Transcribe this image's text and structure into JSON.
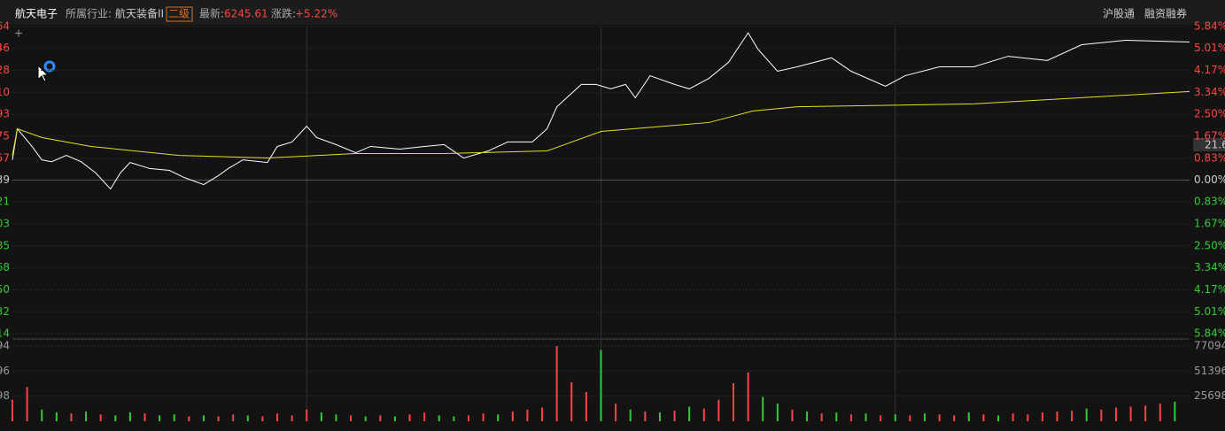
{
  "header": {
    "stock": "航天电子",
    "industry_label": "所属行业:",
    "industry": "航天装备II",
    "level": "二级",
    "latest_label": "最新:",
    "latest": "6245.61",
    "change_label": "涨跌:",
    "change": "+5.22%",
    "buttons": [
      "沪股通",
      "融资融券"
    ],
    "badge": "21.6"
  },
  "price_chart": {
    "type": "line",
    "xlim": [
      0,
      240
    ],
    "xticks": [
      60,
      120,
      180
    ],
    "ylim": [
      -5.84,
      5.84
    ],
    "yticks": [
      {
        "value": 5.84,
        "label": "5.84%"
      },
      {
        "value": 5.01,
        "label": "5.01%"
      },
      {
        "value": 4.17,
        "label": "4.17%"
      },
      {
        "value": 3.34,
        "label": "3.34%"
      },
      {
        "value": 2.5,
        "label": "2.50%"
      },
      {
        "value": 1.67,
        "label": "1.67%"
      },
      {
        "value": 0.83,
        "label": "0.83%"
      },
      {
        "value": 0,
        "label": "0.00%"
      },
      {
        "value": -0.83,
        "label": "0.83%"
      },
      {
        "value": -1.67,
        "label": "1.67%"
      },
      {
        "value": -2.5,
        "label": "2.50%"
      },
      {
        "value": -3.34,
        "label": "3.34%"
      },
      {
        "value": -4.17,
        "label": "4.17%"
      },
      {
        "value": -5.01,
        "label": "5.01%"
      },
      {
        "value": -5.84,
        "label": "5.84%"
      }
    ],
    "left_labels": [
      "64",
      "46",
      "28",
      "10",
      "93",
      "75",
      "57",
      "39",
      "21",
      "03",
      "85",
      "68",
      "50",
      "32",
      "14"
    ],
    "up_color": "#ff4444",
    "flat_color": "#cccccc",
    "down_color": "#33cc33",
    "series": [
      {
        "color": "#ffffff",
        "x": [
          0,
          1,
          4,
          6,
          8,
          11,
          14,
          17,
          20,
          22,
          24,
          28,
          32,
          35,
          39,
          42,
          44,
          47,
          52,
          54,
          57,
          60,
          62,
          66,
          70,
          73,
          79,
          84,
          88,
          92,
          97,
          101,
          106,
          109,
          111,
          116,
          119,
          122,
          125,
          127,
          130,
          135,
          138,
          142,
          146,
          150,
          152,
          156,
          160,
          167,
          171,
          178,
          182,
          189,
          196,
          203,
          211,
          218,
          227,
          240
        ],
        "values": [
          0.77,
          1.95,
          1.28,
          0.77,
          0.7,
          0.94,
          0.7,
          0.27,
          -0.34,
          0.27,
          0.67,
          0.44,
          0.37,
          0.1,
          -0.17,
          0.17,
          0.44,
          0.77,
          0.67,
          1.28,
          1.45,
          2.05,
          1.62,
          1.35,
          1.04,
          1.28,
          1.18,
          1.28,
          1.35,
          0.84,
          1.11,
          1.45,
          1.45,
          1.95,
          2.79,
          3.64,
          3.64,
          3.47,
          3.64,
          3.13,
          3.97,
          3.64,
          3.47,
          3.87,
          4.48,
          5.6,
          4.98,
          4.14,
          4.31,
          4.65,
          4.14,
          3.57,
          3.97,
          4.31,
          4.31,
          4.71,
          4.55,
          5.15,
          5.32,
          5.25
        ]
      },
      {
        "color": "#e8e020",
        "x": [
          0,
          1,
          6,
          16,
          34,
          52,
          70,
          88,
          109,
          120,
          142,
          151,
          160,
          196,
          240
        ],
        "values": [
          0.94,
          1.95,
          1.62,
          1.28,
          0.94,
          0.84,
          1.01,
          1.01,
          1.11,
          1.85,
          2.19,
          2.63,
          2.79,
          2.9,
          3.37
        ]
      }
    ]
  },
  "volume_chart": {
    "type": "bar",
    "ylim": [
      0,
      77094
    ],
    "yticks": [
      25698,
      51396,
      77094
    ],
    "left_labels": [
      "98",
      "96",
      "94"
    ],
    "x": [
      0,
      3,
      6,
      9,
      12,
      15,
      18,
      21,
      24,
      27,
      30,
      33,
      36,
      39,
      42,
      45,
      48,
      51,
      54,
      57,
      60,
      63,
      66,
      69,
      72,
      75,
      78,
      81,
      84,
      87,
      90,
      93,
      96,
      99,
      102,
      105,
      108,
      111,
      114,
      117,
      120,
      123,
      126,
      129,
      132,
      135,
      138,
      141,
      144,
      147,
      150,
      153,
      156,
      159,
      162,
      165,
      168,
      171,
      174,
      177,
      180,
      183,
      186,
      189,
      192,
      195,
      198,
      201,
      204,
      207,
      210,
      213,
      216,
      219,
      222,
      225,
      228,
      231,
      234,
      237
    ],
    "values": [
      22000,
      35000,
      12000,
      9000,
      8000,
      10000,
      7000,
      6000,
      9000,
      8000,
      6000,
      7000,
      5000,
      6000,
      5000,
      7000,
      6000,
      5000,
      8000,
      6000,
      12000,
      9000,
      7000,
      6000,
      5000,
      6000,
      5000,
      7000,
      9000,
      6000,
      5000,
      6000,
      8000,
      7000,
      10000,
      12000,
      14000,
      77000,
      40000,
      30000,
      73000,
      18000,
      12000,
      10000,
      9000,
      11000,
      15000,
      13000,
      22000,
      39000,
      50000,
      25000,
      18000,
      12000,
      10000,
      8000,
      9000,
      7000,
      8000,
      6000,
      7000,
      6000,
      8000,
      7000,
      6000,
      9000,
      7000,
      6000,
      8000,
      7000,
      9000,
      10000,
      11000,
      13000,
      12000,
      14000,
      15000,
      16000,
      18000,
      20000
    ],
    "colors": [
      "#ff4444",
      "#ff4444",
      "#33cc33",
      "#33cc33",
      "#ff4444",
      "#33cc33",
      "#ff4444",
      "#33cc33",
      "#33cc33",
      "#ff4444",
      "#33cc33",
      "#33cc33",
      "#ff4444",
      "#33cc33",
      "#ff4444",
      "#ff4444",
      "#33cc33",
      "#ff4444",
      "#ff4444",
      "#ff4444",
      "#ff4444",
      "#33cc33",
      "#33cc33",
      "#ff4444",
      "#33cc33",
      "#ff4444",
      "#33cc33",
      "#ff4444",
      "#ff4444",
      "#33cc33",
      "#33cc33",
      "#ff4444",
      "#ff4444",
      "#33cc33",
      "#ff4444",
      "#ff4444",
      "#ff4444",
      "#ff4444",
      "#ff4444",
      "#ff4444",
      "#33cc33",
      "#ff4444",
      "#33cc33",
      "#ff4444",
      "#33cc33",
      "#ff4444",
      "#33cc33",
      "#ff4444",
      "#ff4444",
      "#ff4444",
      "#ff4444",
      "#33cc33",
      "#33cc33",
      "#ff4444",
      "#33cc33",
      "#ff4444",
      "#33cc33",
      "#ff4444",
      "#33cc33",
      "#ff4444",
      "#33cc33",
      "#ff4444",
      "#33cc33",
      "#ff4444",
      "#ff4444",
      "#33cc33",
      "#ff4444",
      "#33cc33",
      "#ff4444",
      "#ff4444",
      "#ff4444",
      "#ff4444",
      "#ff4444",
      "#33cc33",
      "#ff4444",
      "#ff4444",
      "#ff4444",
      "#ff4444",
      "#ff4444",
      "#33cc33"
    ]
  }
}
